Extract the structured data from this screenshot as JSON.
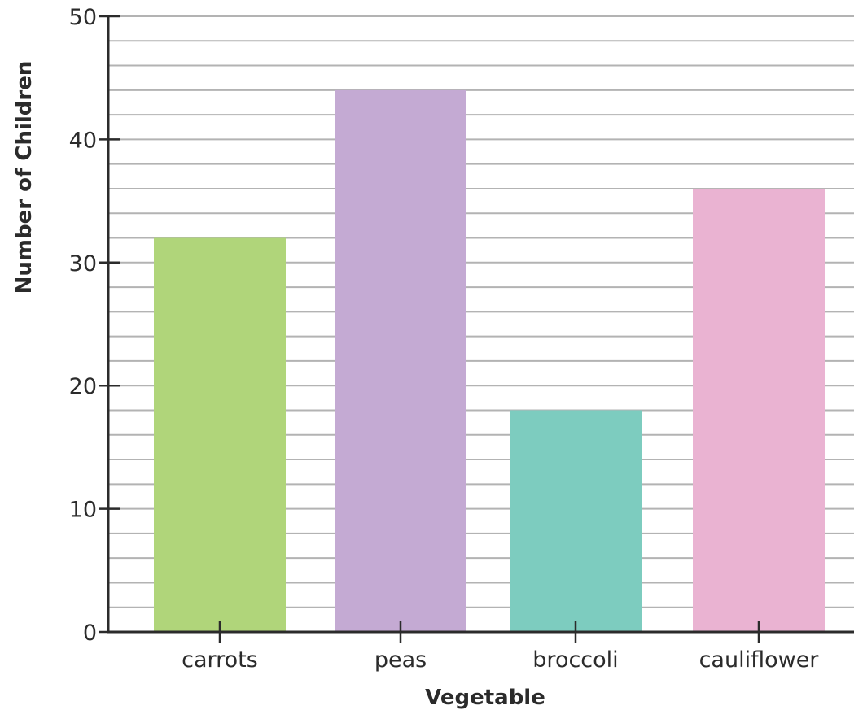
{
  "chart_data": {
    "type": "bar",
    "title": "",
    "xlabel": "Vegetable",
    "ylabel": "Number of Children",
    "categories": [
      "carrots",
      "peas",
      "broccoli",
      "cauliflower"
    ],
    "values": [
      32,
      44,
      18,
      36
    ],
    "ylim": [
      0,
      50
    ],
    "yticks": [
      0,
      10,
      20,
      30,
      40,
      50
    ],
    "minor_grid_step": 2,
    "grid": true,
    "legend": "none",
    "colors": [
      "#b0d57a",
      "#c4aad3",
      "#7dccbf",
      "#eab3d2"
    ],
    "grid_color": "#b3b3b3",
    "axis_color": "#2b2b2b"
  }
}
